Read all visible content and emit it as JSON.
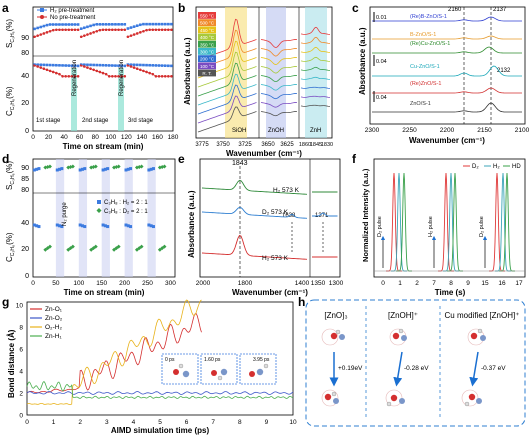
{
  "panels": {
    "a": {
      "letter": "a",
      "legend": [
        "H₂ pre-treatment",
        "No pre-treatment"
      ],
      "ylabel_top": "S",
      "ylabel_top_sub": "C₃H₆",
      "ylabel_top_unit": "(%)",
      "ylabel_bot": "C",
      "ylabel_bot_sub": "C₃H₈",
      "ylabel_bot_unit": "(%)",
      "xlabel": "Time on stream (min)",
      "yticks_top": [
        "90",
        "80"
      ],
      "yticks_bot": [
        "40",
        "20",
        "0"
      ],
      "xticks": [
        "0",
        "20",
        "40",
        "60",
        "80",
        "100",
        "120",
        "140",
        "160",
        "180"
      ],
      "stages": [
        "1st stage",
        "2nd stage",
        "3rd stage"
      ],
      "regen": [
        "Regeneration",
        "Regeneration"
      ]
    },
    "b": {
      "letter": "b",
      "temps": [
        "550 °C",
        "500 °C",
        "450 °C",
        "400 °C",
        "350 °C",
        "300 °C",
        "200 °C",
        "100 °C",
        "R. T."
      ],
      "temp_colors": [
        "#e63b3b",
        "#f08a2a",
        "#e6c21a",
        "#a8c93a",
        "#3aa04a",
        "#3bb8c9",
        "#2f6fd1",
        "#7a4cc2",
        "#555555"
      ],
      "ylabel": "Absorbance (a.u.)",
      "xlabel": "Wavenumber (cm⁻¹)",
      "bands": [
        "SiOH",
        "ZnOH",
        "ZnH"
      ],
      "xticks1": [
        "3775",
        "3750",
        "3725"
      ],
      "xticks2": [
        "3650",
        "3625"
      ],
      "xticks3": [
        "1860",
        "1845",
        "1830"
      ]
    },
    "c": {
      "letter": "c",
      "scale1": "0.01",
      "scale2": "0.04",
      "peaks": [
        "2160",
        "2137",
        "2132"
      ],
      "samples": [
        "(Re)B-ZnO/S-1",
        "B-ZnO/S-1",
        "(Re)Cu-ZnO/S-1",
        "Cu-ZnO/S-1",
        "(Re)ZnO/S-1",
        "ZnO/S-1"
      ],
      "sample_colors": [
        "#2f3fd1",
        "#e69a2a",
        "#2c8a2c",
        "#1aa7b8",
        "#d12f2f",
        "#333333"
      ],
      "ylabel": "Absorbance (a.u.)",
      "xlabel": "Wavenumber (cm⁻¹)",
      "xticks": [
        "2300",
        "2250",
        "2200",
        "2150",
        "2100"
      ]
    },
    "d": {
      "letter": "d",
      "legend": [
        "C₃H₈ : H₂ = 2 : 1",
        "C₃H₈ : D₂ = 2 : 1"
      ],
      "purge": "N₂ purge",
      "ylabel_top": "S",
      "ylabel_bot": "C",
      "yticks_top": [
        "90",
        "85",
        "80"
      ],
      "yticks_bot": [
        "40",
        "20",
        "0"
      ],
      "xlabel": "Time on stream (min)",
      "xticks": [
        "0",
        "50",
        "100",
        "150",
        "200",
        "250",
        "300"
      ]
    },
    "e": {
      "letter": "e",
      "peaks": [
        "1843",
        "1638",
        "1371"
      ],
      "labels": [
        "H₂ 573 K",
        "D₂ 573 K",
        "H₂ 573 K"
      ],
      "ylabel": "Absorbance (a.u.)",
      "xlabel": "Wavenumber (cm⁻¹)",
      "xticks": [
        "2000",
        "1800",
        "1400",
        "1350",
        "1300"
      ]
    },
    "f": {
      "letter": "f",
      "legend": [
        "D₂",
        "H₂",
        "HD"
      ],
      "pulses": [
        "D₂ pulse",
        "H₂ pulse",
        "D₂ pulse"
      ],
      "ylabel": "Normalized Intensity (a.u.)",
      "xlabel": "Time (s)",
      "xticks": [
        "0",
        "1",
        "2",
        "7",
        "8",
        "9",
        "15",
        "16",
        "17"
      ]
    },
    "g": {
      "letter": "g",
      "legend": [
        "Zn-O₁",
        "Zn-O₂",
        "O₂-H₂",
        "Zn-H₁"
      ],
      "colors": [
        "#d42f2f",
        "#3c57c9",
        "#e8b21a",
        "#4caf50"
      ],
      "ylabel": "Bond distance (Å)",
      "xlabel": "AIMD simulation time (ps)",
      "yticks": [
        "0",
        "2",
        "4",
        "6",
        "8",
        "10"
      ],
      "xticks": [
        "0",
        "1",
        "2",
        "3",
        "4",
        "5",
        "6",
        "7",
        "8",
        "9",
        "10"
      ],
      "insets": [
        "0 ps",
        "1.60 ps",
        "3.95 ps"
      ]
    },
    "h": {
      "letter": "h",
      "titles": [
        "[ZnO]₃",
        "[ZnOH]⁺",
        "Cu modified [ZnOH]⁺"
      ],
      "energies": [
        "+0.19eV",
        "-0.28 eV",
        "-0.37 eV"
      ]
    }
  }
}
